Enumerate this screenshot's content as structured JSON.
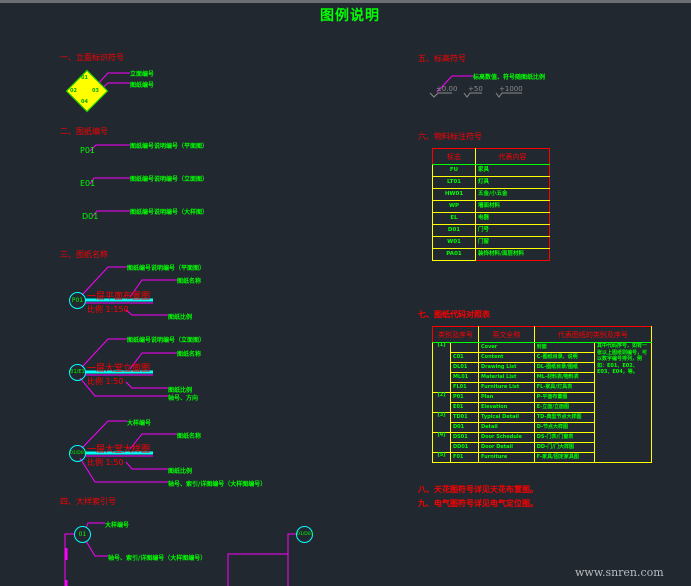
{
  "title": "图例说明",
  "section1": {
    "heading": "一、立面标识符号",
    "symbol_text": [
      "01",
      "02",
      "03",
      "04"
    ],
    "labels": [
      "立面编号",
      "图纸编号"
    ]
  },
  "section2": {
    "heading": "二、图纸编号",
    "items": [
      {
        "code": "P01",
        "label": "图纸编号说明编号（平面图）"
      },
      {
        "code": "E01",
        "label": "图纸编号说明编号（立面图）"
      },
      {
        "code": "D01",
        "label": "图纸编号说明编号（大样图）"
      }
    ]
  },
  "section3": {
    "heading": "三、图纸名称",
    "blocks": [
      {
        "code": "P01",
        "name": "一层平面布置图",
        "scale": "比例 1:150",
        "labels": [
          "图纸编号说明编号（平面图）",
          "图纸名称",
          "图纸比例"
        ]
      },
      {
        "code": "01/E1",
        "name": "一层大堂立面图",
        "scale": "比例 1:50",
        "labels": [
          "图纸编号说明编号（立面图）",
          "图纸名称",
          "图纸比例",
          "轴号、方向"
        ]
      },
      {
        "code": "01/D01",
        "name": "一层大堂大样图",
        "scale": "比例 1:50",
        "labels": [
          "大样编号",
          "图纸名称",
          "图纸比例",
          "轴号、索引/详图编号（大样图编号）"
        ]
      }
    ]
  },
  "section4": {
    "heading": "四、大样索引号",
    "symbol_left": "01",
    "symbol_right": "01/D01",
    "labels": [
      "大样编号",
      "轴号、索引/详图编号（大样图编号）"
    ]
  },
  "section5": {
    "heading": "五、标高符号",
    "label": "标高数值、符号随图纸比例",
    "values": [
      "±0.00",
      "+50",
      "+1000"
    ]
  },
  "section6": {
    "heading": "六、物料标注符号",
    "headers": [
      "标志",
      "代表内容"
    ],
    "rows": [
      {
        "symbol": "FU",
        "content": "家具"
      },
      {
        "symbol": "LT01",
        "content": "灯具"
      },
      {
        "symbol": "HW01",
        "content": "五金/小五金"
      },
      {
        "symbol": "WP",
        "content": "墙面材料"
      },
      {
        "symbol": "EL",
        "content": "电器"
      },
      {
        "symbol": "D01",
        "content": "门号"
      },
      {
        "symbol": "W01",
        "content": "门窗"
      },
      {
        "symbol": "PA01",
        "content": "装饰材料/面层材料"
      }
    ]
  },
  "section7": {
    "heading": "七、图纸代码对照表",
    "headers": [
      "类别及序号",
      "英文全称",
      "代表图纸的类别及序号"
    ],
    "note": "其中代码序号，如有一张以上图纸则编号，可以数字编号排列，例如：E01、E02、E03、E04，等。",
    "groups": [
      {
        "cat": "[1]",
        "rows": [
          {
            "code": "",
            "en": "Cover",
            "cn": "封面"
          },
          {
            "code": "C01",
            "en": "Content",
            "cn": "C-图纸目录、说明"
          },
          {
            "code": "DL01",
            "en": "Drawing List",
            "cn": "DL-图纸目录/图纸"
          },
          {
            "code": "ML01",
            "en": "Material List",
            "cn": "ML-材料表/物料表"
          },
          {
            "code": "FL01",
            "en": "Furniture List",
            "cn": "FL-家具/灯具表"
          }
        ]
      },
      {
        "cat": "[2]",
        "rows": [
          {
            "code": "P01",
            "en": "Plan",
            "cn": "P-平面布置图"
          },
          {
            "code": "E01",
            "en": "Elevation",
            "cn": "E-立面/立面图"
          }
        ]
      },
      {
        "cat": "[3]",
        "rows": [
          {
            "code": "TD01",
            "en": "Typical Detail",
            "cn": "TD-典型节点大样图"
          },
          {
            "code": "D01",
            "en": "Detail",
            "cn": "D-节点大样图"
          }
        ]
      },
      {
        "cat": "[4]",
        "rows": [
          {
            "code": "DS01",
            "en": "Door Schedule",
            "cn": "DS-门表/门窗表"
          },
          {
            "code": "DD01",
            "en": "Door Detail",
            "cn": "DD-门/门大样图"
          }
        ]
      },
      {
        "cat": "[5]",
        "rows": [
          {
            "code": "F01",
            "en": "Furniture",
            "cn": "F-家具/固定家具图"
          }
        ]
      }
    ]
  },
  "section8": "八、天花图符号详见天花布置图。",
  "section9": "九、电气图符号详见电气定位图。",
  "watermark": "www.snren.com",
  "colors": {
    "background": "#212830",
    "heading": "#ff0000",
    "label": "#00ff00",
    "leader": "#ff00ff",
    "symbol": "#00ffff",
    "grid": "#ffff00"
  }
}
